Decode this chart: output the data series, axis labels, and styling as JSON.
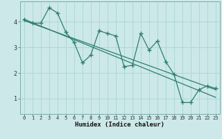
{
  "xlabel": "Humidex (Indice chaleur)",
  "bg_color": "#cce8e8",
  "grid_color": "#add8d8",
  "line_color": "#2e7d6e",
  "xlim": [
    -0.5,
    23.5
  ],
  "ylim": [
    0.4,
    4.8
  ],
  "xticks": [
    0,
    1,
    2,
    3,
    4,
    5,
    6,
    7,
    8,
    9,
    10,
    11,
    12,
    13,
    14,
    15,
    16,
    17,
    18,
    19,
    20,
    21,
    22,
    23
  ],
  "yticks": [
    1,
    2,
    3,
    4
  ],
  "zigzag_x": [
    0,
    1,
    2,
    3,
    4,
    5,
    6,
    7,
    8,
    9,
    10,
    11,
    12,
    13,
    14,
    15,
    16,
    17,
    18,
    19,
    20,
    21,
    22,
    23
  ],
  "zigzag_y": [
    4.1,
    3.95,
    3.95,
    4.55,
    4.35,
    3.6,
    3.2,
    2.4,
    2.7,
    3.65,
    3.55,
    3.45,
    2.25,
    2.3,
    3.55,
    2.9,
    3.25,
    2.45,
    1.95,
    0.85,
    0.85,
    1.35,
    1.5,
    1.4
  ],
  "trend1_x": [
    0,
    23
  ],
  "trend1_y": [
    4.1,
    1.05
  ],
  "trend2_x": [
    0,
    23
  ],
  "trend2_y": [
    4.05,
    1.35
  ]
}
